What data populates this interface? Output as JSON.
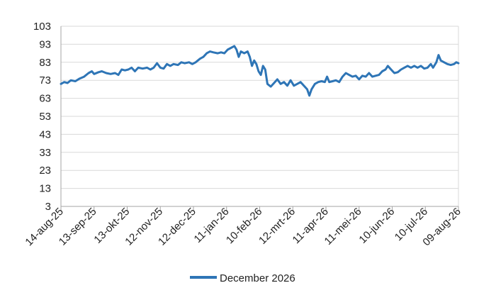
{
  "chart_data": {
    "type": "line",
    "title": "",
    "xlabel": "",
    "ylabel": "",
    "ylim": [
      3,
      103
    ],
    "yticks": [
      "103",
      "93",
      "83",
      "73",
      "63",
      "53",
      "43",
      "33",
      "23",
      "13",
      "3"
    ],
    "xticks": [
      "14-aug-25",
      "13-sep-25",
      "13-okt-25",
      "12-nov-25",
      "12-dec-25",
      "11-jan-26",
      "10-feb-26",
      "12-mrt-26",
      "11-apr-26",
      "11-mei-26",
      "10-jun-26",
      "10-jul-26",
      "09-aug-26"
    ],
    "xlim": [
      "2025-08-14",
      "2026-08-09"
    ],
    "grid": true,
    "legend_position": "bottom",
    "series": [
      {
        "name": "December 2026",
        "color": "#2e75b6",
        "points": [
          [
            "2025-08-14",
            71
          ],
          [
            "2025-08-17",
            72
          ],
          [
            "2025-08-20",
            71.5
          ],
          [
            "2025-08-23",
            73
          ],
          [
            "2025-08-27",
            72.5
          ],
          [
            "2025-08-31",
            74
          ],
          [
            "2025-09-04",
            75
          ],
          [
            "2025-09-08",
            77
          ],
          [
            "2025-09-11",
            78
          ],
          [
            "2025-09-13",
            76.5
          ],
          [
            "2025-09-17",
            77.5
          ],
          [
            "2025-09-20",
            78
          ],
          [
            "2025-09-24",
            77
          ],
          [
            "2025-09-28",
            76.5
          ],
          [
            "2025-10-02",
            77
          ],
          [
            "2025-10-05",
            76
          ],
          [
            "2025-10-08",
            79
          ],
          [
            "2025-10-11",
            78.5
          ],
          [
            "2025-10-14",
            79
          ],
          [
            "2025-10-17",
            80
          ],
          [
            "2025-10-20",
            78
          ],
          [
            "2025-10-23",
            80
          ],
          [
            "2025-10-27",
            79.5
          ],
          [
            "2025-10-31",
            80
          ],
          [
            "2025-11-03",
            79
          ],
          [
            "2025-11-06",
            80
          ],
          [
            "2025-11-09",
            82.5
          ],
          [
            "2025-11-12",
            80
          ],
          [
            "2025-11-15",
            79.5
          ],
          [
            "2025-11-18",
            82
          ],
          [
            "2025-11-21",
            81
          ],
          [
            "2025-11-24",
            82
          ],
          [
            "2025-11-28",
            81.5
          ],
          [
            "2025-12-01",
            83
          ],
          [
            "2025-12-04",
            82.5
          ],
          [
            "2025-12-08",
            83
          ],
          [
            "2025-12-11",
            82
          ],
          [
            "2025-12-14",
            83
          ],
          [
            "2025-12-18",
            85
          ],
          [
            "2025-12-21",
            86
          ],
          [
            "2025-12-24",
            88
          ],
          [
            "2025-12-27",
            89
          ],
          [
            "2025-12-30",
            88.5
          ],
          [
            "2026-01-03",
            88
          ],
          [
            "2026-01-06",
            88.5
          ],
          [
            "2026-01-09",
            88
          ],
          [
            "2026-01-12",
            90
          ],
          [
            "2026-01-15",
            91
          ],
          [
            "2026-01-18",
            92
          ],
          [
            "2026-01-20",
            90
          ],
          [
            "2026-01-22",
            86
          ],
          [
            "2026-01-24",
            89
          ],
          [
            "2026-01-27",
            88
          ],
          [
            "2026-01-30",
            89
          ],
          [
            "2026-02-01",
            86
          ],
          [
            "2026-02-03",
            81
          ],
          [
            "2026-02-05",
            84
          ],
          [
            "2026-02-07",
            82
          ],
          [
            "2026-02-09",
            78
          ],
          [
            "2026-02-11",
            76
          ],
          [
            "2026-02-13",
            81
          ],
          [
            "2026-02-15",
            79
          ],
          [
            "2026-02-17",
            71
          ],
          [
            "2026-02-20",
            69.5
          ],
          [
            "2026-02-23",
            71.5
          ],
          [
            "2026-02-26",
            73.5
          ],
          [
            "2026-03-01",
            71
          ],
          [
            "2026-03-04",
            72
          ],
          [
            "2026-03-07",
            70
          ],
          [
            "2026-03-10",
            73
          ],
          [
            "2026-03-13",
            70
          ],
          [
            "2026-03-16",
            71
          ],
          [
            "2026-03-19",
            72
          ],
          [
            "2026-03-22",
            70
          ],
          [
            "2026-03-25",
            68
          ],
          [
            "2026-03-27",
            64.5
          ],
          [
            "2026-03-29",
            68
          ],
          [
            "2026-04-01",
            71
          ],
          [
            "2026-04-04",
            72
          ],
          [
            "2026-04-07",
            72.5
          ],
          [
            "2026-04-10",
            72
          ],
          [
            "2026-04-12",
            75
          ],
          [
            "2026-04-14",
            72
          ],
          [
            "2026-04-17",
            72.5
          ],
          [
            "2026-04-20",
            73
          ],
          [
            "2026-04-23",
            72
          ],
          [
            "2026-04-26",
            75
          ],
          [
            "2026-04-29",
            77
          ],
          [
            "2026-05-02",
            76
          ],
          [
            "2026-05-05",
            75
          ],
          [
            "2026-05-08",
            75.5
          ],
          [
            "2026-05-11",
            73.5
          ],
          [
            "2026-05-14",
            75.5
          ],
          [
            "2026-05-17",
            75
          ],
          [
            "2026-05-20",
            77
          ],
          [
            "2026-05-23",
            75
          ],
          [
            "2026-05-26",
            75.5
          ],
          [
            "2026-05-29",
            76
          ],
          [
            "2026-06-01",
            78
          ],
          [
            "2026-06-04",
            79
          ],
          [
            "2026-06-06",
            81
          ],
          [
            "2026-06-09",
            79
          ],
          [
            "2026-06-12",
            77
          ],
          [
            "2026-06-15",
            77.5
          ],
          [
            "2026-06-18",
            79
          ],
          [
            "2026-06-21",
            80
          ],
          [
            "2026-06-24",
            81
          ],
          [
            "2026-06-27",
            80
          ],
          [
            "2026-06-30",
            81
          ],
          [
            "2026-07-03",
            80
          ],
          [
            "2026-07-06",
            81
          ],
          [
            "2026-07-09",
            79.5
          ],
          [
            "2026-07-12",
            80
          ],
          [
            "2026-07-15",
            82
          ],
          [
            "2026-07-17",
            80
          ],
          [
            "2026-07-20",
            83
          ],
          [
            "2026-07-22",
            87
          ],
          [
            "2026-07-24",
            84
          ],
          [
            "2026-07-27",
            83
          ],
          [
            "2026-07-30",
            82
          ],
          [
            "2026-08-02",
            81.5
          ],
          [
            "2026-08-05",
            82
          ],
          [
            "2026-08-07",
            83
          ],
          [
            "2026-08-09",
            82.5
          ]
        ]
      }
    ]
  }
}
